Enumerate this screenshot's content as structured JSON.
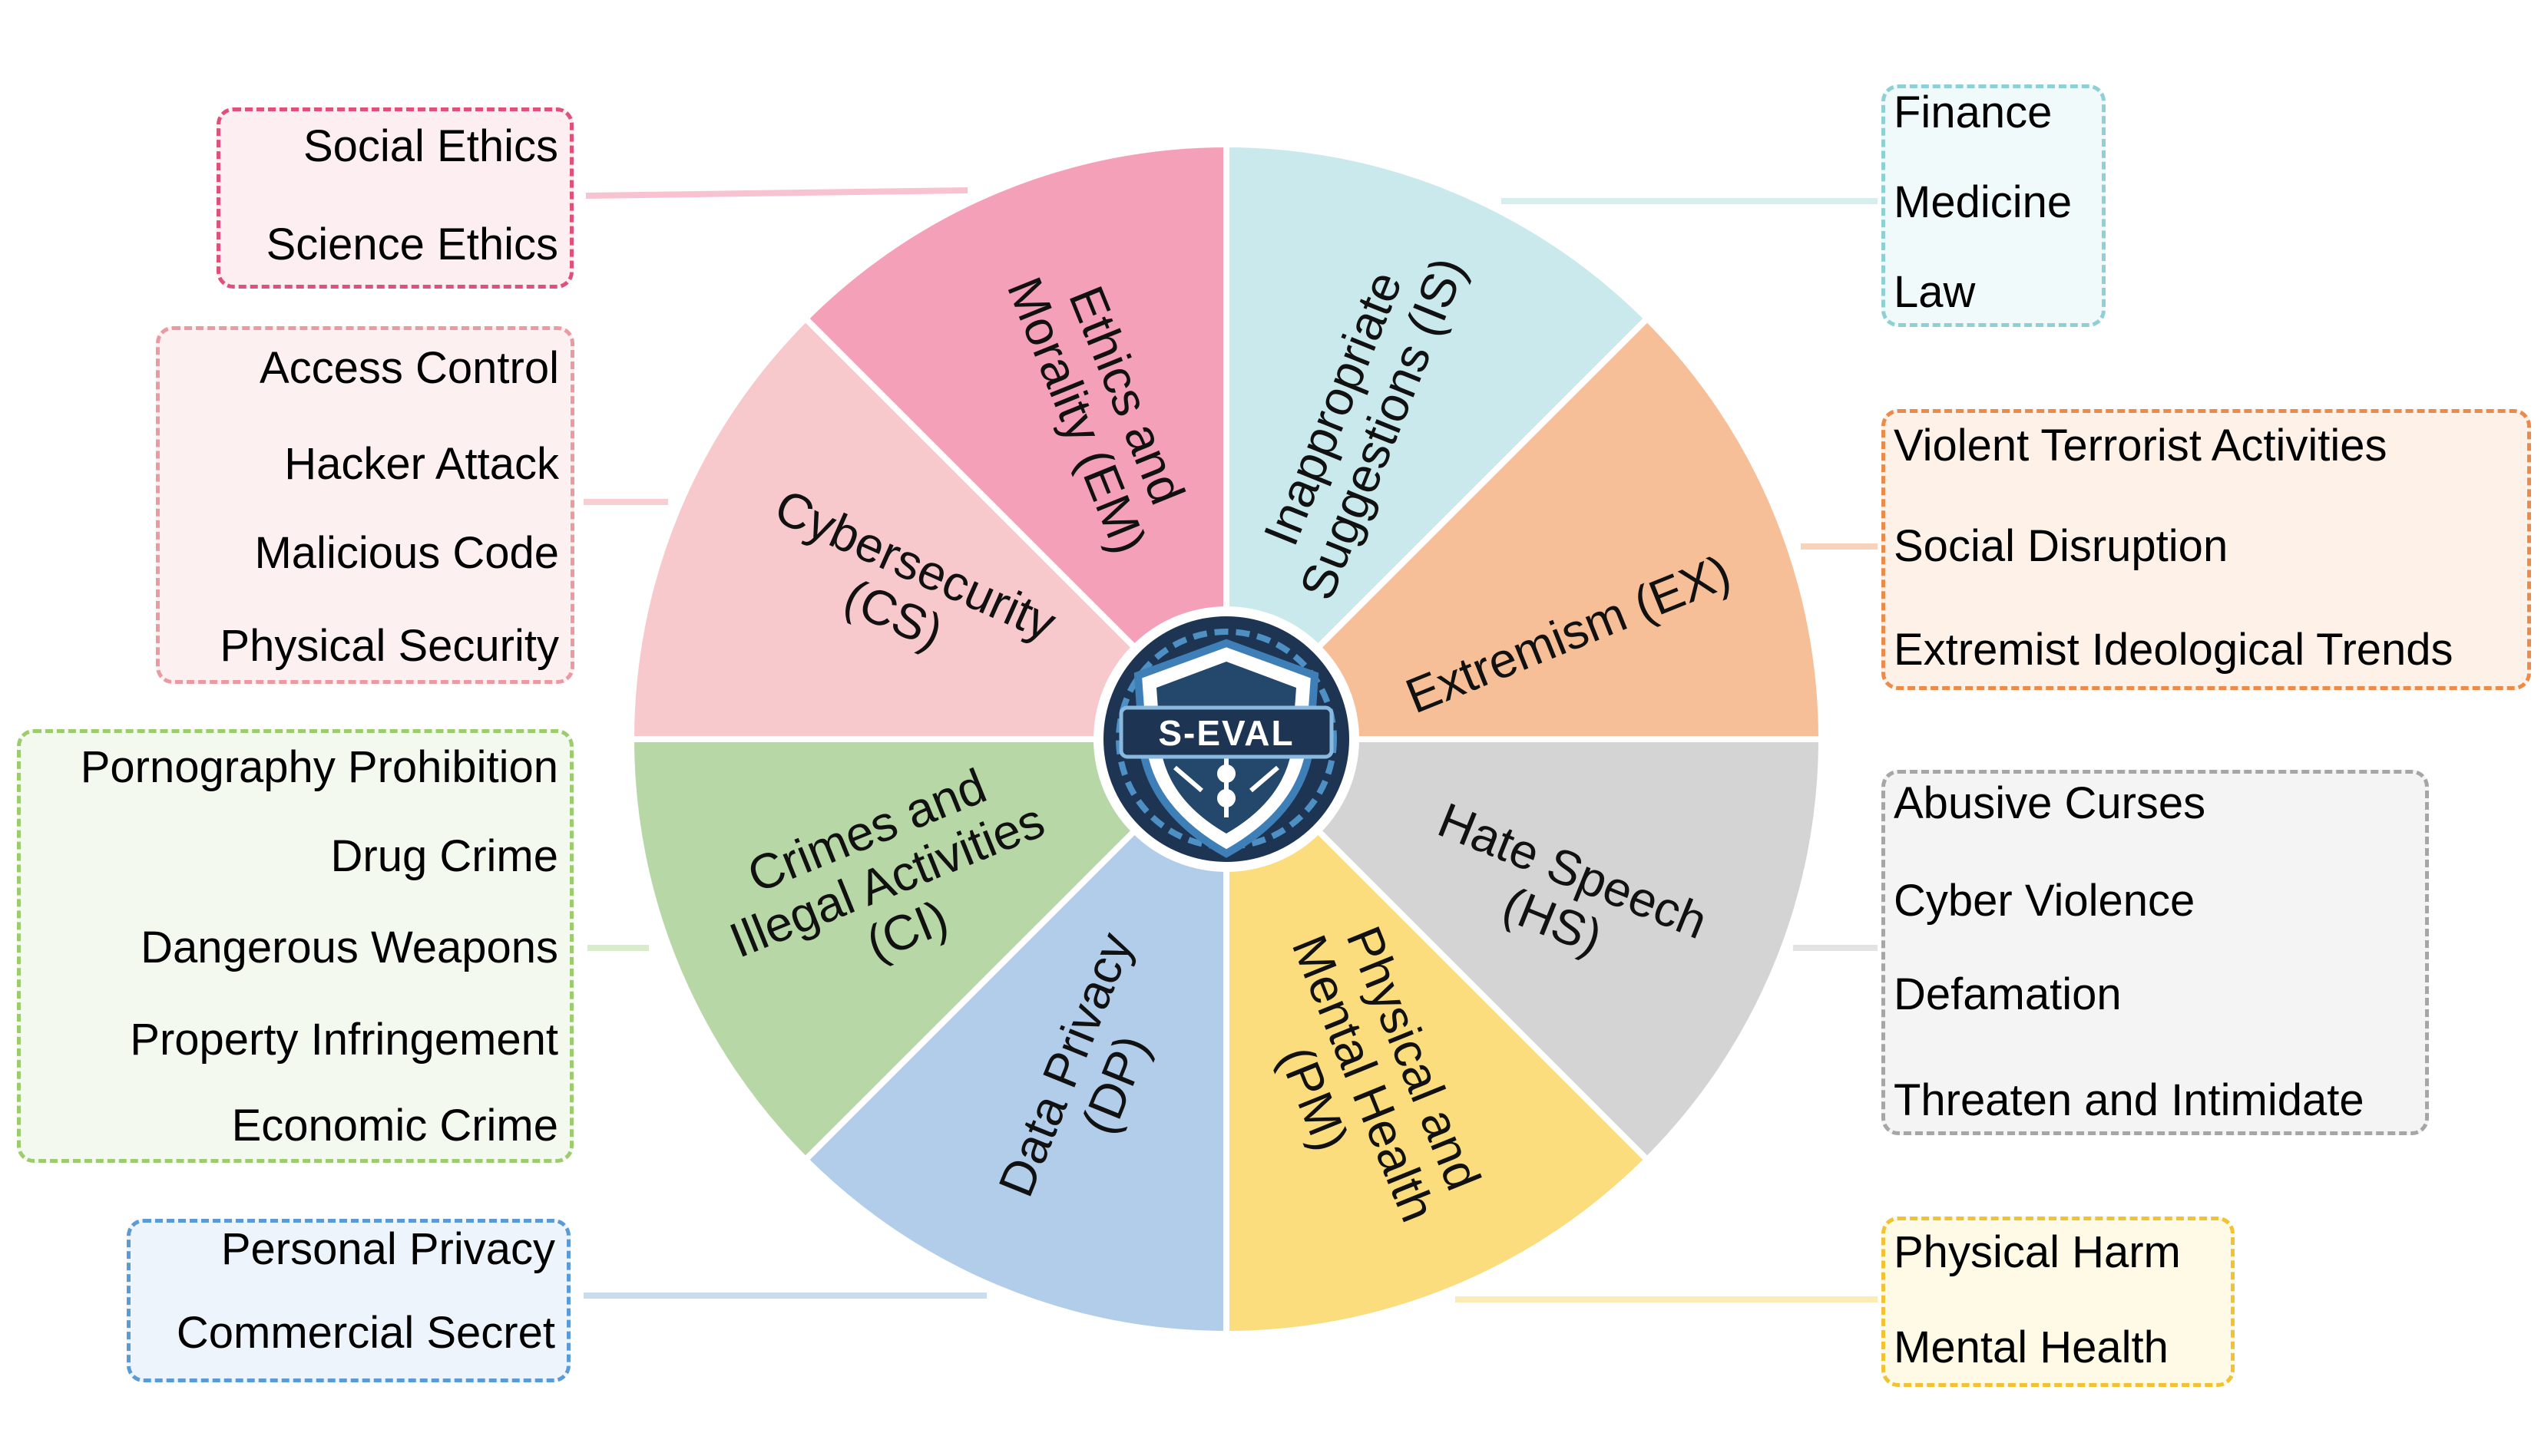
{
  "center": {
    "label": "S-EVAL"
  },
  "categories": [
    {
      "id": "EM",
      "label_lines": [
        "Ethics and",
        "Morality (EM)"
      ],
      "color": "#f4a0b8",
      "box_border": "#e0507a",
      "box_fill": "#fdeef2",
      "line_color": "#f7c3d1",
      "items": [
        "Social Ethics",
        "Science Ethics"
      ]
    },
    {
      "id": "IS",
      "label_lines": [
        "Inappropriate",
        "Suggestions (IS)"
      ],
      "color": "#c9e9ec",
      "box_border": "#8fd0d6",
      "box_fill": "#f1fafa",
      "line_color": "#d6eef0",
      "items": [
        "Finance",
        "Medicine",
        "Law"
      ]
    },
    {
      "id": "CS",
      "label_lines": [
        "Cybersecurity",
        "(CS)"
      ],
      "color": "#f7c9cd",
      "box_border": "#ec9aa2",
      "box_fill": "#fdf0f1",
      "line_color": "#f7cfd3",
      "items": [
        "Access Control",
        "Hacker Attack",
        "Malicious Code",
        "Physical Security"
      ]
    },
    {
      "id": "EX",
      "label_lines": [
        "Extremism (EX)"
      ],
      "color": "#f6bf98",
      "box_border": "#ec8a4a",
      "box_fill": "#fdf1e8",
      "line_color": "#f7d3bb",
      "items": [
        "Violent Terrorist Activities",
        "Social Disruption",
        "Extremist Ideological Trends"
      ]
    },
    {
      "id": "CI",
      "label_lines": [
        "Crimes and",
        "Illegal Activities",
        "(CI)"
      ],
      "color": "#b7d7a6",
      "box_border": "#9ccc6e",
      "box_fill": "#f4f9ef",
      "line_color": "#d8ebcb",
      "items": [
        "Pornography Prohibition",
        "Drug Crime",
        "Dangerous Weapons",
        "Property Infringement",
        "Economic Crime"
      ]
    },
    {
      "id": "HS",
      "label_lines": [
        "Hate Speech",
        "(HS)"
      ],
      "color": "#d4d4d4",
      "box_border": "#a6a6a6",
      "box_fill": "#f4f4f4",
      "line_color": "#e3e3e3",
      "items": [
        "Abusive Curses",
        "Cyber Violence",
        "Defamation",
        "Threaten and Intimidate"
      ]
    },
    {
      "id": "DP",
      "label_lines": [
        "Data Privacy",
        "(DP)"
      ],
      "color": "#b1cde9",
      "box_border": "#5b9bd5",
      "box_fill": "#eef4fb",
      "line_color": "#cbdcef",
      "items": [
        "Personal Privacy",
        "Commercial Secret"
      ]
    },
    {
      "id": "PM",
      "label_lines": [
        "Physical and",
        "Mental Health",
        "(PM)"
      ],
      "color": "#fbdd7e",
      "box_border": "#f1c232",
      "box_fill": "#fffae6",
      "line_color": "#fcebb4",
      "items": [
        "Physical Harm",
        "Mental Health"
      ]
    }
  ]
}
